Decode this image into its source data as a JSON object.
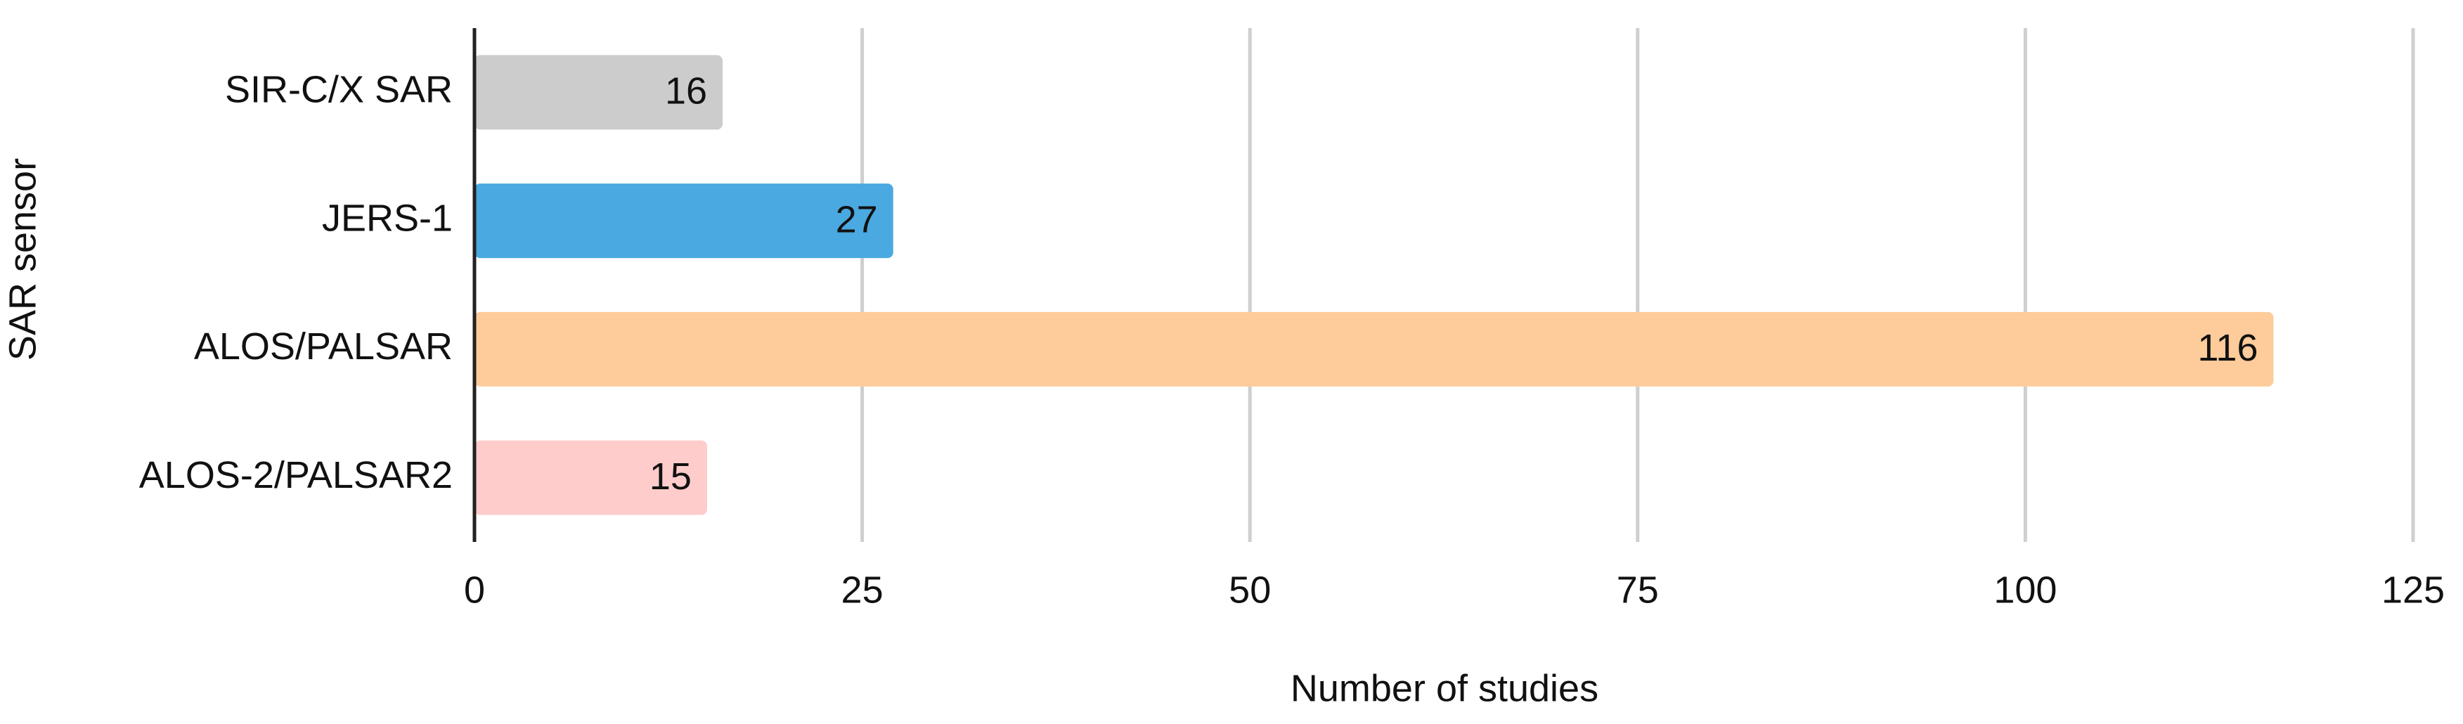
{
  "chart_data": {
    "type": "hbar",
    "categories": [
      "SIR-C/X SAR",
      "JERS-1",
      "ALOS/PALSAR",
      "ALOS-2/PALSAR2"
    ],
    "values": [
      16,
      27,
      116,
      15
    ],
    "colors": [
      "#cccccc",
      "#4aa9e0",
      "#fecb9a",
      "#ffcccc"
    ],
    "xlabel": "Number of studies",
    "ylabel": "SAR sensor",
    "xlim": [
      0,
      125
    ],
    "xticks": [
      0,
      25,
      50,
      75,
      100,
      125
    ],
    "grid": true
  }
}
